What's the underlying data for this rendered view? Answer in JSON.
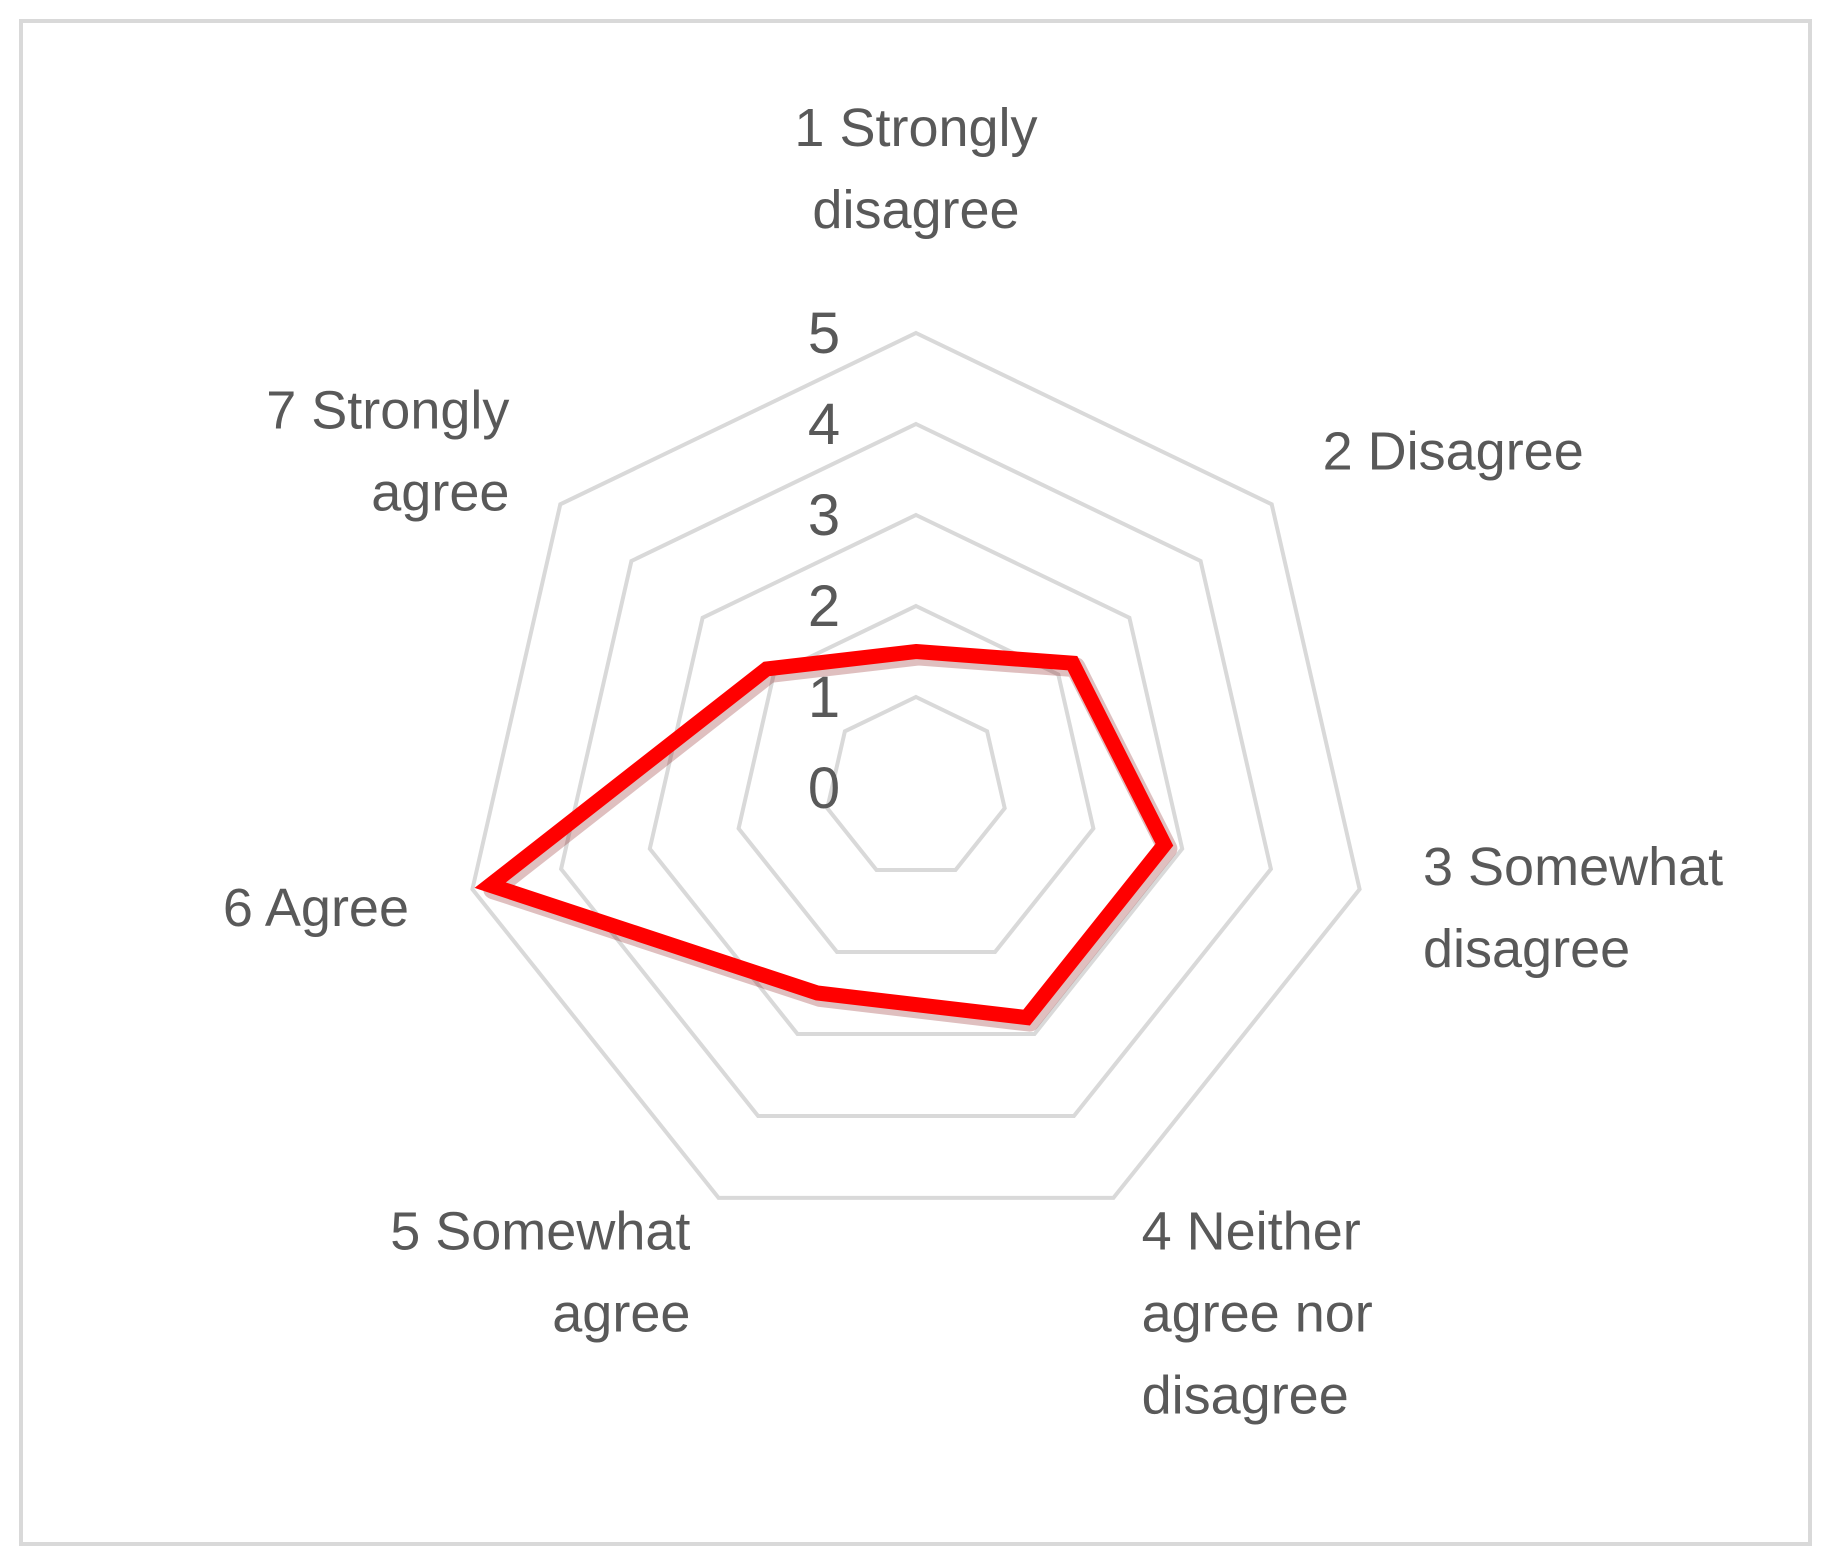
{
  "chart_data": {
    "type": "radar",
    "categories": [
      [
        "1 Strongly",
        "disagree"
      ],
      [
        "2 Disagree"
      ],
      [
        "3 Somewhat",
        "disagree"
      ],
      [
        "4 Neither",
        "agree nor",
        "disagree"
      ],
      [
        "5 Somewhat",
        "agree"
      ],
      [
        "6 Agree"
      ],
      [
        "7 Strongly",
        "agree"
      ]
    ],
    "series": [
      {
        "values": [
          1.5,
          2.2,
          2.8,
          2.8,
          2.5,
          4.8,
          2.1
        ],
        "color": "#ff0000"
      }
    ],
    "rlim": [
      0,
      5
    ],
    "ticks": [
      "0",
      "1",
      "2",
      "3",
      "4",
      "5"
    ],
    "grid_color": "#d9d9d9",
    "grid": true,
    "legend": "none"
  }
}
